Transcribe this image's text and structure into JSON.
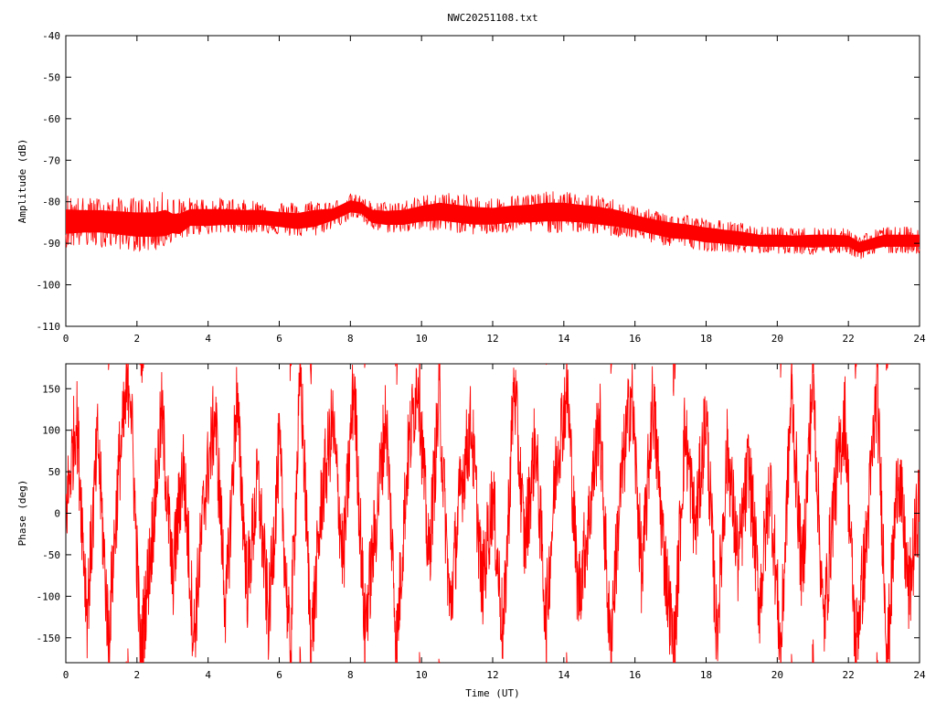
{
  "page_title": "NWC20251108.txt",
  "colors": {
    "series": "#ff0000",
    "frame": "#000000",
    "background": "#ffffff"
  },
  "chart_data": [
    {
      "type": "line",
      "title": "NWC20251108.txt",
      "xlabel": "",
      "ylabel": "Amplitude (dB)",
      "xlim": [
        0,
        24
      ],
      "ylim": [
        -110,
        -40
      ],
      "xticks": [
        "0",
        "2",
        "4",
        "6",
        "8",
        "10",
        "12",
        "14",
        "16",
        "18",
        "20",
        "22",
        "24"
      ],
      "yticks": [
        "-40",
        "-50",
        "-60",
        "-70",
        "-80",
        "-90",
        "-100",
        "-110"
      ],
      "grid": false,
      "series": [
        {
          "x": [
            0,
            0.5,
            1,
            1.5,
            2,
            2.5,
            2.8,
            3.0,
            3.2,
            3.5,
            4,
            4.5,
            5,
            5.5,
            6,
            6.5,
            7,
            7.5,
            8,
            8.3,
            8.6,
            9,
            9.5,
            10,
            10.5,
            11,
            11.5,
            12,
            12.5,
            13,
            13.5,
            14,
            14.5,
            15,
            15.5,
            16,
            16.5,
            17,
            17.5,
            18,
            18.5,
            19,
            19.5,
            20,
            20.5,
            21,
            21.5,
            22,
            22.3,
            22.6,
            23,
            23.5,
            24
          ],
          "y": [
            -85,
            -84.5,
            -84.5,
            -85,
            -85.5,
            -85.5,
            -86,
            -86,
            -86,
            -84,
            -84,
            -84,
            -84,
            -84,
            -84.5,
            -85,
            -84,
            -83,
            -81,
            -81.5,
            -83.5,
            -84,
            -84,
            -83,
            -82.5,
            -83,
            -83.5,
            -83.5,
            -83,
            -83,
            -82.5,
            -82.5,
            -83,
            -83.5,
            -84,
            -85,
            -86,
            -87,
            -87.5,
            -88,
            -88.5,
            -89,
            -89.5,
            -89.5,
            -89.5,
            -89.5,
            -89.5,
            -89.5,
            -91,
            -90.5,
            -89.5,
            -89.5,
            -89.5
          ],
          "hi": [
            -78,
            -79,
            -79,
            -79,
            -79,
            -79,
            -77,
            -79,
            -79,
            -79,
            -79,
            -79,
            -79.5,
            -79.5,
            -80,
            -80,
            -79.5,
            -80,
            -78,
            -78.5,
            -80,
            -80,
            -79.5,
            -78.5,
            -77.5,
            -78,
            -78.5,
            -79,
            -78.5,
            -78,
            -77.5,
            -77.5,
            -78,
            -78.5,
            -79.5,
            -81,
            -82,
            -82.5,
            -83,
            -84,
            -84.5,
            -85,
            -86,
            -86,
            -86.5,
            -86,
            -86,
            -86.5,
            -88,
            -87,
            -86,
            -86,
            -86
          ],
          "lo": [
            -91,
            -91,
            -91,
            -91.5,
            -92,
            -92,
            -91,
            -89.5,
            -90,
            -88,
            -88,
            -87.5,
            -87.5,
            -87.5,
            -88,
            -88.5,
            -88.5,
            -86.5,
            -84.5,
            -84.5,
            -87,
            -87.5,
            -87.5,
            -87,
            -87,
            -87.5,
            -88,
            -88,
            -87.5,
            -87.5,
            -87.5,
            -87.5,
            -87.5,
            -88,
            -88.5,
            -89,
            -90,
            -91,
            -91,
            -92,
            -92,
            -92.5,
            -92.5,
            -92.5,
            -92.5,
            -93,
            -92.5,
            -92.5,
            -94,
            -93,
            -92.5,
            -92.5,
            -92.5
          ]
        }
      ]
    },
    {
      "type": "line",
      "title": "",
      "xlabel": "Time (UT)",
      "ylabel": "Phase (deg)",
      "xlim": [
        0,
        24
      ],
      "ylim": [
        -180,
        180
      ],
      "xticks": [
        "0",
        "2",
        "4",
        "6",
        "8",
        "10",
        "12",
        "14",
        "16",
        "18",
        "20",
        "22",
        "24"
      ],
      "yticks": [
        "150",
        "100",
        "50",
        "0",
        "-50",
        "-100",
        "-150"
      ],
      "grid": false,
      "series": [
        {
          "x": [
            0,
            0.3,
            0.6,
            0.9,
            1.2,
            1.5,
            1.8,
            2.1,
            2.4,
            2.7,
            3.0,
            3.3,
            3.6,
            3.9,
            4.2,
            4.5,
            4.8,
            5.1,
            5.4,
            5.7,
            6.0,
            6.3,
            6.6,
            6.9,
            7.2,
            7.5,
            7.8,
            8.1,
            8.4,
            8.7,
            9.0,
            9.3,
            9.6,
            9.9,
            10.2,
            10.5,
            10.8,
            11.1,
            11.4,
            11.7,
            12.0,
            12.3,
            12.6,
            12.9,
            13.2,
            13.5,
            13.8,
            14.1,
            14.4,
            14.7,
            15.0,
            15.3,
            15.6,
            15.9,
            16.2,
            16.5,
            16.8,
            17.1,
            17.4,
            17.7,
            18.0,
            18.3,
            18.6,
            18.9,
            19.2,
            19.5,
            19.8,
            20.1,
            20.4,
            20.7,
            21.0,
            21.3,
            21.6,
            21.9,
            22.2,
            22.5,
            22.8,
            23.1,
            23.4,
            23.7,
            24.0
          ],
          "y": [
            0,
            120,
            -120,
            90,
            -150,
            60,
            170,
            -170,
            -40,
            120,
            -80,
            60,
            -150,
            20,
            120,
            -120,
            140,
            -90,
            40,
            -130,
            80,
            -170,
            170,
            -160,
            20,
            110,
            -60,
            160,
            -140,
            -20,
            120,
            -160,
            60,
            170,
            -60,
            140,
            -120,
            30,
            110,
            -90,
            20,
            -150,
            160,
            -40,
            90,
            -130,
            70,
            150,
            -100,
            -10,
            120,
            -160,
            30,
            150,
            -80,
            140,
            -40,
            -170,
            100,
            -20,
            120,
            -150,
            80,
            -60,
            60,
            -110,
            40,
            -170,
            150,
            -80,
            170,
            -140,
            20,
            120,
            -160,
            -40,
            150,
            -170,
            60,
            -100,
            20
          ]
        }
      ]
    }
  ]
}
